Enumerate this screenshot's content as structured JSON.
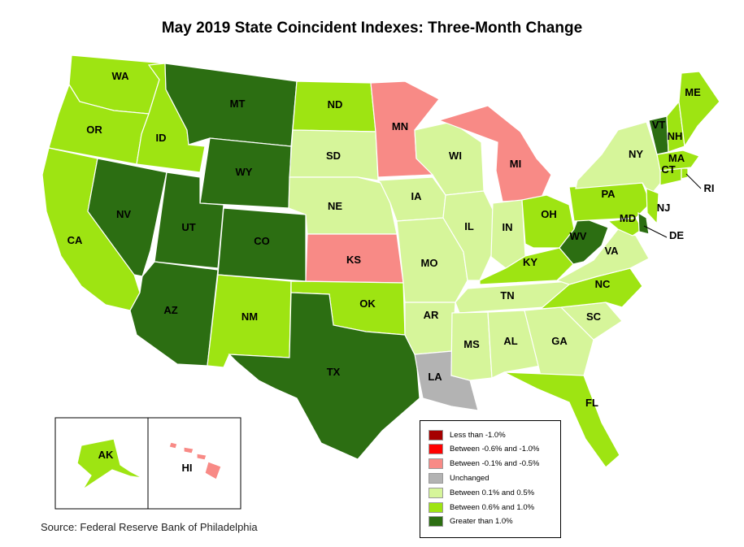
{
  "title": "May 2019 State Coincident Indexes: Three-Month Change",
  "source": "Source: Federal Reserve Bank of Philadelphia",
  "legend": [
    {
      "key": "lt_neg1",
      "label": "Less than -1.0%",
      "color": "#a50000"
    },
    {
      "key": "neg06_neg1",
      "label": "Between -0.6% and -1.0%",
      "color": "#ff0000"
    },
    {
      "key": "neg01_neg05",
      "label": "Between -0.1% and -0.5%",
      "color": "#f88a86"
    },
    {
      "key": "unchanged",
      "label": "Unchanged",
      "color": "#b3b3b3"
    },
    {
      "key": "p01_05",
      "label": "Between 0.1% and 0.5%",
      "color": "#d6f59a"
    },
    {
      "key": "p06_10",
      "label": "Between 0.6% and 1.0%",
      "color": "#9ee412"
    },
    {
      "key": "gt1",
      "label": "Greater than 1.0%",
      "color": "#2c6e12"
    }
  ],
  "states": {
    "WA": "p06_10",
    "OR": "p06_10",
    "CA": "p06_10",
    "ID": "p06_10",
    "NV": "gt1",
    "MT": "gt1",
    "WY": "gt1",
    "UT": "gt1",
    "AZ": "gt1",
    "CO": "gt1",
    "NM": "p06_10",
    "ND": "p06_10",
    "SD": "p01_05",
    "NE": "p01_05",
    "KS": "neg01_neg05",
    "OK": "p06_10",
    "TX": "gt1",
    "MN": "neg01_neg05",
    "IA": "p01_05",
    "MO": "p01_05",
    "AR": "p01_05",
    "LA": "unchanged",
    "WI": "p01_05",
    "IL": "p01_05",
    "MI": "neg01_neg05",
    "IN": "p01_05",
    "OH": "p06_10",
    "KY": "p06_10",
    "TN": "p01_05",
    "MS": "p01_05",
    "AL": "p01_05",
    "GA": "p01_05",
    "FL": "p06_10",
    "SC": "p01_05",
    "NC": "p06_10",
    "VA": "p01_05",
    "WV": "gt1",
    "MD": "p06_10",
    "DE": "gt1",
    "PA": "p06_10",
    "NJ": "p06_10",
    "NY": "p01_05",
    "CT": "p06_10",
    "RI": "p06_10",
    "MA": "p06_10",
    "VT": "gt1",
    "NH": "p06_10",
    "ME": "p06_10",
    "AK": "p06_10",
    "HI": "neg01_neg05"
  }
}
